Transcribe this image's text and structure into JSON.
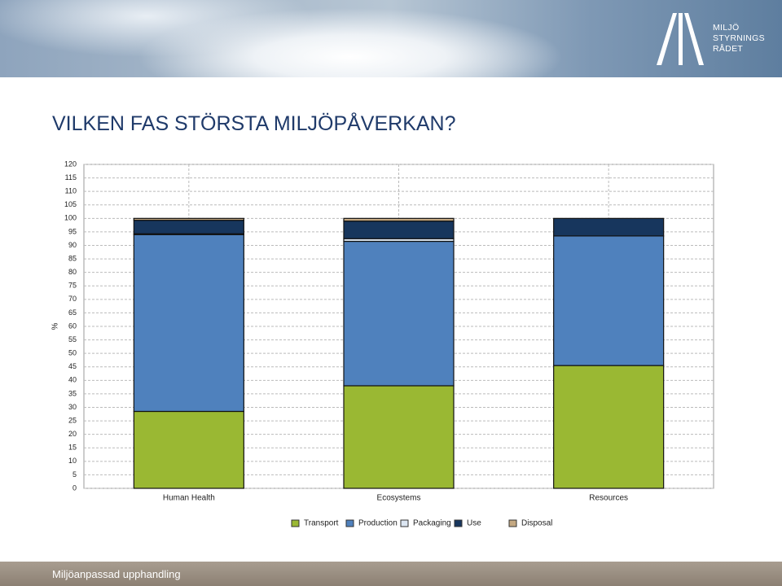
{
  "header": {
    "logo_lines": [
      "MILJÖ",
      "STYRNINGS",
      "RÅDET"
    ]
  },
  "title": "VILKEN FAS STÖRSTA MILJÖPÅVERKAN?",
  "chart_data": {
    "type": "stacked_bar",
    "categories": [
      "Human Health",
      "Ecosystems",
      "Resources"
    ],
    "ylabel": "%",
    "series": [
      {
        "name": "Transport",
        "color": "#9ab833",
        "values": [
          28.5,
          38,
          45.5
        ]
      },
      {
        "name": "Production",
        "color": "#4f81bd",
        "values": [
          65.5,
          53.5,
          48
        ]
      },
      {
        "name": "Packaging",
        "color": "#dce6f2",
        "values": [
          0.3,
          1,
          0
        ]
      },
      {
        "name": "Use",
        "color": "#17365d",
        "values": [
          5,
          6.5,
          6.5
        ]
      },
      {
        "name": "Disposal",
        "color": "#c4a882",
        "values": [
          0.7,
          1,
          0
        ]
      }
    ],
    "ylim": [
      0,
      120
    ],
    "yticks": [
      0,
      5,
      10,
      15,
      20,
      25,
      30,
      35,
      40,
      45,
      50,
      55,
      60,
      65,
      70,
      75,
      80,
      85,
      90,
      95,
      100,
      105,
      110,
      115,
      120
    ],
    "grid": true,
    "legend": "bottom"
  },
  "footer": "Miljöanpassad upphandling"
}
